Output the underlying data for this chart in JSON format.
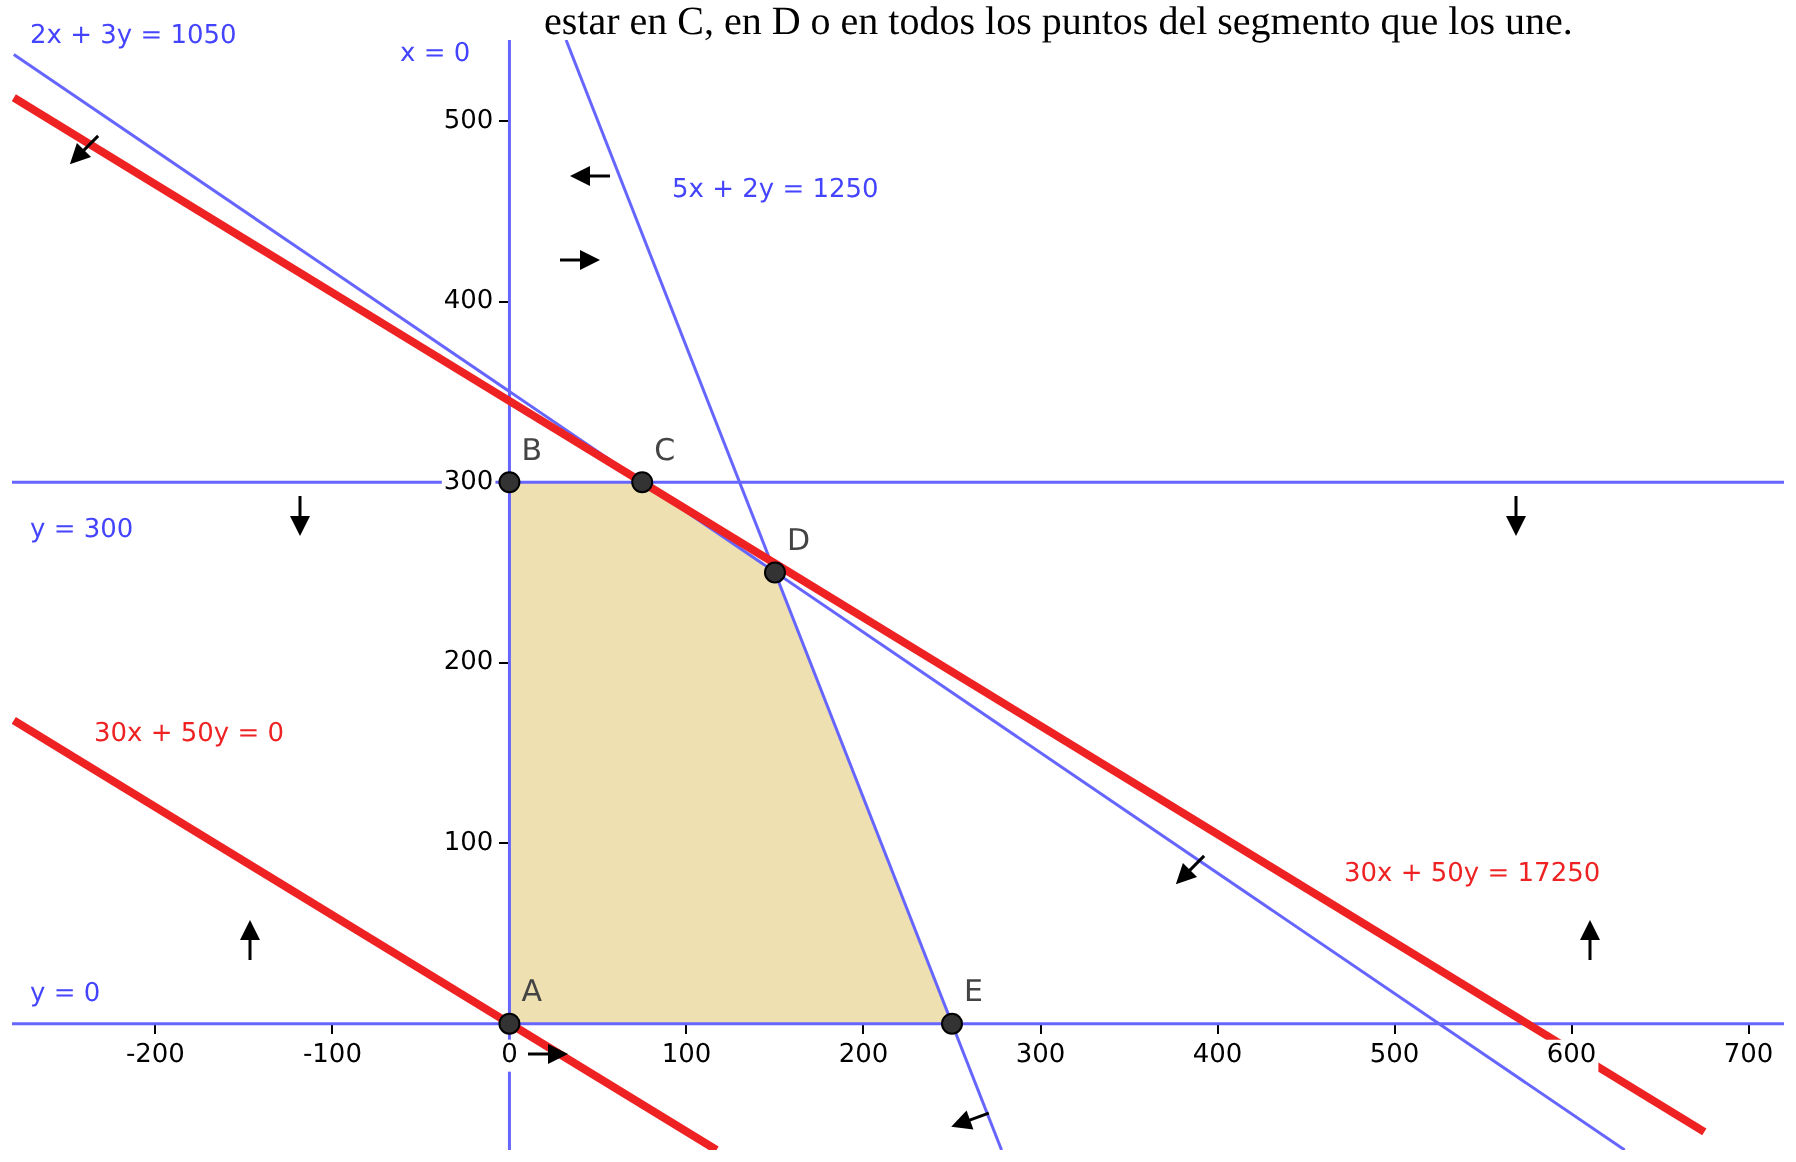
{
  "chart_data": {
    "type": "line",
    "title": "estar en C, en D o en todos los puntos del segmento que los une.",
    "xlim": [
      -281,
      720
    ],
    "ylim": [
      -70,
      545
    ],
    "xticks": [
      -200,
      -100,
      0,
      100,
      200,
      300,
      400,
      500,
      600,
      700
    ],
    "yticks": [
      100,
      200,
      300,
      400,
      500
    ],
    "grid": false,
    "legend": false,
    "series": [
      {
        "type": "area",
        "color": "#eee0b0",
        "x": [
          0,
          0,
          75,
          150,
          250
        ],
        "values": [
          0,
          300,
          300,
          250,
          0
        ]
      },
      {
        "type": "line",
        "color": "#6666ff",
        "x": [
          -280,
          630
        ],
        "values": [
          537,
          -70
        ]
      },
      {
        "type": "line",
        "color": "#6666ff",
        "x": [
          32,
          278
        ],
        "values": [
          545,
          -70
        ]
      },
      {
        "type": "line",
        "color": "#6666ff",
        "x": [
          0,
          0
        ],
        "values": [
          -70,
          545
        ]
      },
      {
        "type": "line",
        "color": "#6666ff",
        "x": [
          -281,
          720
        ],
        "values": [
          300,
          300
        ]
      },
      {
        "type": "line",
        "color": "#6666ff",
        "x": [
          -281,
          720
        ],
        "values": [
          0,
          0
        ]
      },
      {
        "type": "line",
        "color": "#ee2222",
        "x": [
          -280,
          117
        ],
        "values": [
          168,
          -70
        ]
      },
      {
        "type": "line",
        "color": "#ee2222",
        "x": [
          -280,
          675
        ],
        "values": [
          513,
          -60
        ]
      },
      {
        "type": "scatter",
        "color": "#333333",
        "marker": "circle",
        "x": [
          0,
          0,
          75,
          150,
          250
        ],
        "values": [
          0,
          300,
          300,
          250,
          0
        ]
      }
    ],
    "annotations": [
      "2x + 3y = 1050",
      "5x + 2y = 1250",
      "x = 0",
      "y = 300",
      "y = 0",
      "30x + 50y = 0",
      "30x + 50y = 17250",
      {
        "text": "A",
        "x": 0,
        "y": 0
      },
      {
        "text": "B",
        "x": 0,
        "y": 300
      },
      {
        "text": "C",
        "x": 75,
        "y": 300
      },
      {
        "text": "D",
        "x": 150,
        "y": 250
      },
      {
        "text": "E",
        "x": 250,
        "y": 0
      }
    ]
  }
}
